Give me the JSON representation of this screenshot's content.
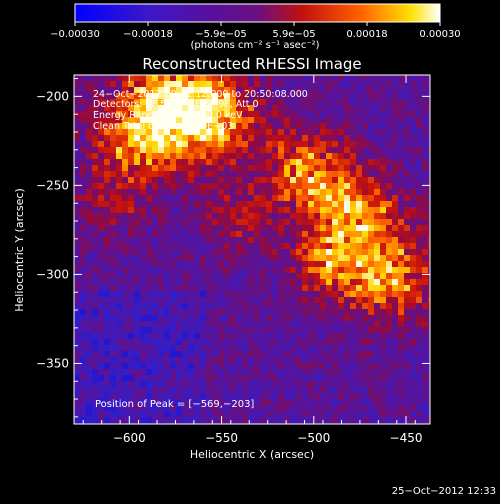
{
  "chart_data": {
    "type": "heatmap",
    "title": "Reconstructed RHESSI Image",
    "xlabel": "Heliocentric X (arcsec)",
    "ylabel": "Heliocentric Y (arcsec)",
    "xlim": [
      -630,
      -437
    ],
    "ylim": [
      -384,
      -188
    ],
    "x_ticks": [
      -600,
      -550,
      -500,
      -450
    ],
    "x_tick_labels": [
      "−600",
      "−550",
      "−500",
      "−450"
    ],
    "y_ticks": [
      -200,
      -250,
      -300,
      -350
    ],
    "y_tick_labels": [
      "−200",
      "−250",
      "−300",
      "−350"
    ],
    "colorbar": {
      "colormap": "blue-purple-red-yellow-white",
      "range": [
        -0.0003,
        0.0003
      ],
      "tick_labels": [
        "−0.00030",
        "−0.00018",
        "−5.9e−05",
        "5.9e−05",
        "0.00018",
        "0.00030"
      ],
      "unit_label": "(photons cm⁻² s⁻¹ asec⁻²)"
    },
    "annotations": [
      "24−Oct−2012 20:12:12.000 to 20:50:08.000",
      "Detectors: 3F 5F 6F 7F 8F 9F, Att 0",
      "Energy Range: 25.0 − 50.0 keV",
      "Clean     Total counts: 2.89E+03",
      "Position of Peak = [−569,−203]"
    ],
    "peak_position": [
      -569,
      -203
    ],
    "timestamp": "25−Oct−2012 12:33"
  }
}
